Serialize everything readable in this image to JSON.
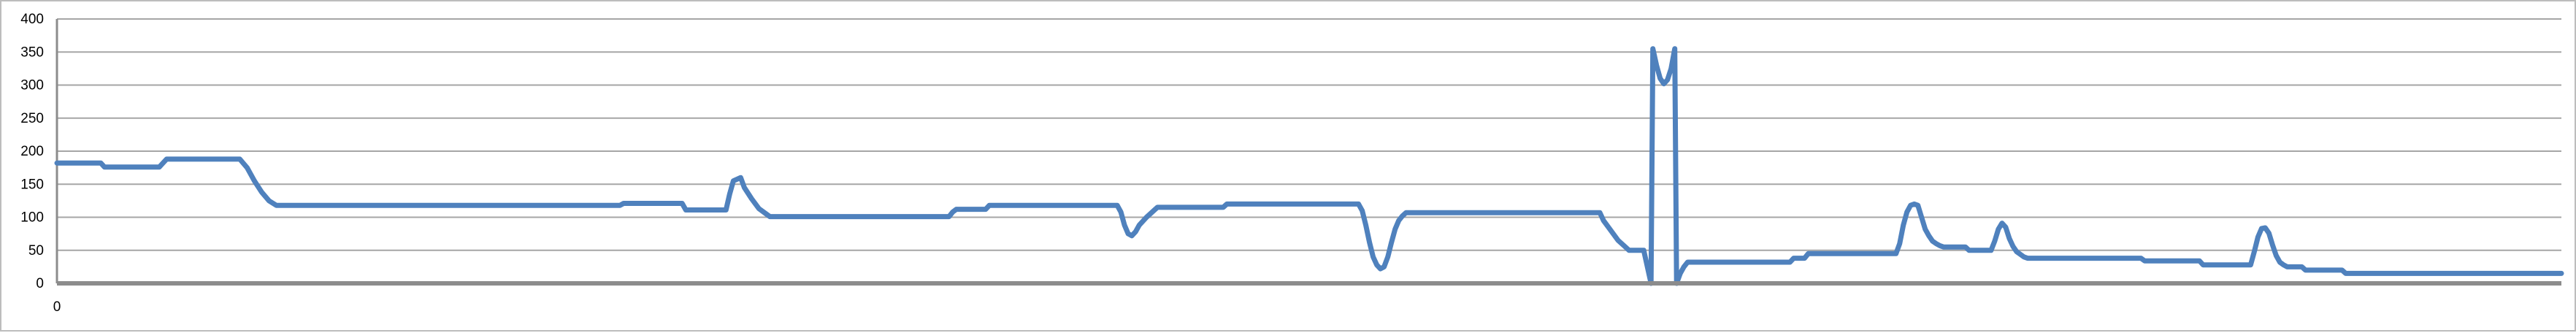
{
  "chart_data": {
    "type": "line",
    "title": "",
    "xlabel": "",
    "ylabel": "",
    "ylim": [
      0,
      400
    ],
    "y_ticks": [
      "0",
      "50",
      "100",
      "150",
      "200",
      "250",
      "300",
      "350",
      "400"
    ],
    "x_ticks": [
      "0"
    ],
    "xlim": [
      0,
      685
    ],
    "grid": true,
    "legend": "none",
    "colors": {
      "series": "#4f81bd",
      "grid": "#a6a6a6",
      "axis": "#8c8c8c",
      "frame": "#bdbdbd"
    },
    "series": [
      {
        "values": [
          [
            0,
            182
          ],
          [
            12,
            182
          ],
          [
            13,
            176
          ],
          [
            28,
            176
          ],
          [
            29,
            182
          ],
          [
            30,
            188
          ],
          [
            50,
            188
          ],
          [
            52,
            175
          ],
          [
            54,
            155
          ],
          [
            56,
            138
          ],
          [
            58,
            125
          ],
          [
            60,
            118
          ],
          [
            154,
            118
          ],
          [
            155,
            121
          ],
          [
            171,
            121
          ],
          [
            172,
            111
          ],
          [
            183,
            111
          ],
          [
            184,
            135
          ],
          [
            185,
            155
          ],
          [
            187,
            160
          ],
          [
            188,
            145
          ],
          [
            190,
            128
          ],
          [
            192,
            113
          ],
          [
            194,
            105
          ],
          [
            195,
            101
          ],
          [
            244,
            101
          ],
          [
            245,
            108
          ],
          [
            246,
            112
          ],
          [
            254,
            112
          ],
          [
            255,
            118
          ],
          [
            290,
            118
          ],
          [
            291,
            108
          ],
          [
            292,
            88
          ],
          [
            293,
            75
          ],
          [
            294,
            72
          ],
          [
            295,
            78
          ],
          [
            296,
            88
          ],
          [
            298,
            100
          ],
          [
            300,
            110
          ],
          [
            301,
            115
          ],
          [
            319,
            115
          ],
          [
            320,
            120
          ],
          [
            356,
            120
          ],
          [
            357,
            110
          ],
          [
            358,
            88
          ],
          [
            359,
            62
          ],
          [
            360,
            40
          ],
          [
            361,
            28
          ],
          [
            362,
            22
          ],
          [
            363,
            25
          ],
          [
            364,
            40
          ],
          [
            365,
            62
          ],
          [
            366,
            82
          ],
          [
            367,
            95
          ],
          [
            368,
            102
          ],
          [
            369,
            107
          ],
          [
            422,
            107
          ],
          [
            423,
            95
          ],
          [
            425,
            80
          ],
          [
            427,
            65
          ],
          [
            429,
            55
          ],
          [
            430,
            50
          ],
          [
            434,
            50
          ],
          [
            435,
            25
          ],
          [
            436,
            0
          ],
          [
            436.5,
            355
          ],
          [
            437.5,
            330
          ],
          [
            438.5,
            310
          ],
          [
            439.5,
            302
          ],
          [
            440.5,
            308
          ],
          [
            441.5,
            325
          ],
          [
            442.5,
            355
          ],
          [
            443,
            0
          ],
          [
            444,
            15
          ],
          [
            445,
            25
          ],
          [
            446,
            32
          ],
          [
            474,
            32
          ],
          [
            475,
            38
          ],
          [
            478,
            38
          ],
          [
            479,
            45
          ],
          [
            503,
            45
          ],
          [
            504,
            60
          ],
          [
            505,
            88
          ],
          [
            506,
            108
          ],
          [
            507,
            118
          ],
          [
            508,
            120
          ],
          [
            509,
            118
          ],
          [
            510,
            100
          ],
          [
            511,
            82
          ],
          [
            512,
            72
          ],
          [
            513,
            64
          ],
          [
            514,
            60
          ],
          [
            515,
            57
          ],
          [
            516,
            55
          ],
          [
            522,
            55
          ],
          [
            523,
            50
          ],
          [
            529,
            50
          ],
          [
            530,
            64
          ],
          [
            531,
            82
          ],
          [
            532,
            91
          ],
          [
            533,
            85
          ],
          [
            534,
            68
          ],
          [
            535,
            56
          ],
          [
            536,
            48
          ],
          [
            537,
            44
          ],
          [
            538,
            40
          ],
          [
            539,
            38
          ],
          [
            570,
            38
          ],
          [
            571,
            34
          ],
          [
            586,
            34
          ],
          [
            587,
            28
          ],
          [
            600,
            28
          ],
          [
            601,
            48
          ],
          [
            602,
            70
          ],
          [
            603,
            83
          ],
          [
            604,
            84
          ],
          [
            605,
            76
          ],
          [
            606,
            58
          ],
          [
            607,
            42
          ],
          [
            608,
            32
          ],
          [
            609,
            28
          ],
          [
            610,
            25
          ],
          [
            611,
            25
          ],
          [
            614,
            25
          ],
          [
            615,
            20
          ],
          [
            625,
            20
          ],
          [
            626,
            15
          ],
          [
            685,
            15
          ]
        ]
      }
    ]
  }
}
